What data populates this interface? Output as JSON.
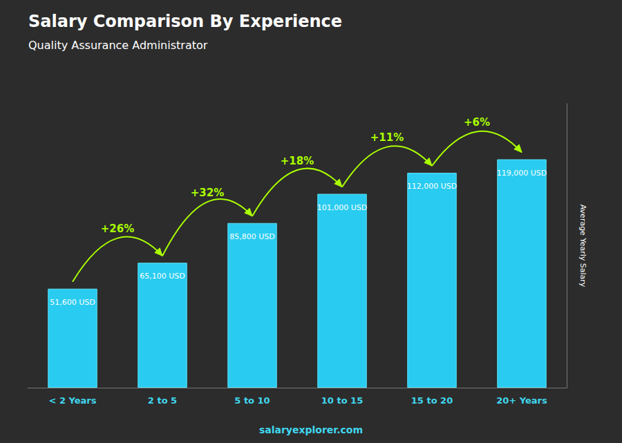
{
  "chart_data": {
    "type": "bar",
    "title": "Salary Comparison By Experience",
    "subtitle": "Quality Assurance Administrator",
    "categories": [
      "< 2 Years",
      "2 to 5",
      "5 to 10",
      "10 to 15",
      "15 to 20",
      "20+ Years"
    ],
    "values": [
      51600,
      65100,
      85800,
      101000,
      112000,
      119000
    ],
    "value_labels": [
      "51,600 USD",
      "65,100 USD",
      "85,800 USD",
      "101,000 USD",
      "112,000 USD",
      "119,000 USD"
    ],
    "data_labels": true,
    "color": "#29ccf0",
    "ylabel": "Average Yearly Salary",
    "ylim": [
      0,
      148000
    ],
    "annotations": [
      "+26%",
      "+32%",
      "+18%",
      "+11%",
      "+6%"
    ],
    "footer": "salaryexplorer.com",
    "grid": false,
    "tick_labels": "x"
  }
}
